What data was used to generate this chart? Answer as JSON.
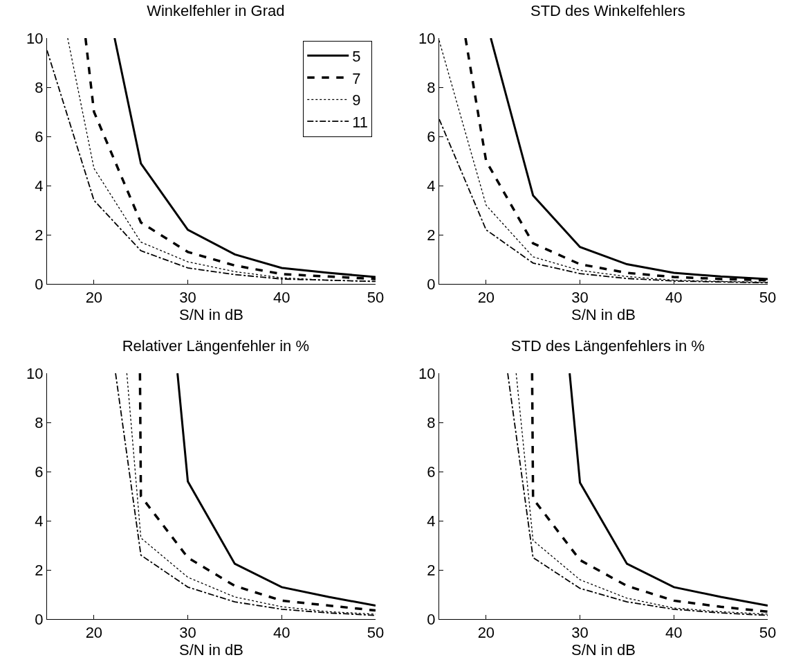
{
  "chart_data": [
    {
      "type": "line",
      "title": "Winkelfehler in Grad",
      "xlabel": "S/N in dB",
      "xlim": [
        15,
        50
      ],
      "xticks": [
        20,
        30,
        40,
        50
      ],
      "ylim": [
        0,
        10
      ],
      "yticks": [
        0,
        2,
        4,
        6,
        8,
        10
      ],
      "grid": false,
      "legend": "top right",
      "marker": "none",
      "series": [
        {
          "name": "5",
          "color": "#000000",
          "line_style": "solid",
          "x": [
            22.2,
            25,
            30,
            35,
            40,
            45,
            50
          ],
          "values": [
            10,
            4.9,
            2.2,
            1.2,
            0.65,
            0.45,
            0.28
          ]
        },
        {
          "name": "7",
          "color": "#000000",
          "line_style": "dashed",
          "x": [
            19.1,
            20,
            25,
            30,
            35,
            40,
            45,
            50
          ],
          "values": [
            10,
            7.0,
            2.5,
            1.3,
            0.75,
            0.4,
            0.3,
            0.2
          ]
        },
        {
          "name": "9",
          "color": "#000000",
          "line_style": "dotted",
          "x": [
            17.2,
            20,
            25,
            30,
            35,
            40,
            45,
            50
          ],
          "values": [
            10,
            4.7,
            1.7,
            0.9,
            0.5,
            0.25,
            0.15,
            0.1
          ]
        },
        {
          "name": "11",
          "color": "#000000",
          "line_style": "dashdot",
          "x": [
            15,
            20,
            25,
            30,
            35,
            40,
            45,
            50
          ],
          "values": [
            9.5,
            3.4,
            1.35,
            0.65,
            0.38,
            0.2,
            0.15,
            0.1
          ]
        }
      ]
    },
    {
      "type": "line",
      "title": "STD des Winkelfehlers",
      "xlabel": "S/N in dB",
      "xlim": [
        15,
        50
      ],
      "xticks": [
        20,
        30,
        40,
        50
      ],
      "ylim": [
        0,
        10
      ],
      "yticks": [
        0,
        2,
        4,
        6,
        8,
        10
      ],
      "grid": false,
      "legend": false,
      "marker": "none",
      "series": [
        {
          "color": "#000000",
          "line_style": "solid",
          "x": [
            20.5,
            25,
            30,
            35,
            40,
            45,
            50
          ],
          "values": [
            10,
            3.6,
            1.5,
            0.8,
            0.45,
            0.3,
            0.2
          ]
        },
        {
          "color": "#000000",
          "line_style": "dashed",
          "x": [
            17.8,
            20,
            25,
            30,
            35,
            40,
            45,
            50
          ],
          "values": [
            10,
            5.0,
            1.65,
            0.8,
            0.45,
            0.28,
            0.2,
            0.15
          ]
        },
        {
          "color": "#000000",
          "line_style": "dotted",
          "x": [
            15,
            20,
            25,
            30,
            35,
            40,
            45,
            50
          ],
          "values": [
            9.9,
            3.2,
            1.1,
            0.55,
            0.3,
            0.15,
            0.1,
            0.07
          ]
        },
        {
          "color": "#000000",
          "line_style": "dashdot",
          "x": [
            15,
            20,
            25,
            30,
            35,
            40,
            45,
            50
          ],
          "values": [
            6.7,
            2.2,
            0.85,
            0.42,
            0.22,
            0.12,
            0.08,
            0.05
          ]
        }
      ]
    },
    {
      "type": "line",
      "title": "Relativer Längenfehler in %",
      "xlabel": "S/N in dB",
      "xlim": [
        15,
        50
      ],
      "xticks": [
        20,
        30,
        40,
        50
      ],
      "ylim": [
        0,
        10
      ],
      "yticks": [
        0,
        2,
        4,
        6,
        8,
        10
      ],
      "grid": false,
      "legend": false,
      "marker": "none",
      "series": [
        {
          "color": "#000000",
          "line_style": "solid",
          "x": [
            28.9,
            30,
            35,
            40,
            45,
            50
          ],
          "values": [
            10,
            5.6,
            2.25,
            1.3,
            0.9,
            0.55
          ]
        },
        {
          "color": "#000000",
          "line_style": "dashed",
          "x": [
            24.9,
            25,
            30,
            35,
            40,
            45,
            50
          ],
          "values": [
            10,
            5.0,
            2.5,
            1.35,
            0.75,
            0.55,
            0.35
          ]
        },
        {
          "color": "#000000",
          "line_style": "dotted",
          "x": [
            23.5,
            25,
            30,
            35,
            40,
            45,
            50
          ],
          "values": [
            10,
            3.3,
            1.7,
            0.9,
            0.5,
            0.3,
            0.2
          ]
        },
        {
          "color": "#000000",
          "line_style": "dashdot",
          "x": [
            22.3,
            25,
            30,
            35,
            40,
            45,
            50
          ],
          "values": [
            10,
            2.6,
            1.3,
            0.7,
            0.4,
            0.25,
            0.15
          ]
        }
      ]
    },
    {
      "type": "line",
      "title": "STD des Längenfehlers in %",
      "xlabel": "S/N in dB",
      "xlim": [
        15,
        50
      ],
      "xticks": [
        20,
        30,
        40,
        50
      ],
      "ylim": [
        0,
        10
      ],
      "yticks": [
        0,
        2,
        4,
        6,
        8,
        10
      ],
      "grid": false,
      "legend": false,
      "marker": "none",
      "series": [
        {
          "color": "#000000",
          "line_style": "solid",
          "x": [
            28.9,
            30,
            35,
            40,
            45,
            50
          ],
          "values": [
            10,
            5.55,
            2.25,
            1.3,
            0.9,
            0.55
          ]
        },
        {
          "color": "#000000",
          "line_style": "dashed",
          "x": [
            24.9,
            25,
            30,
            35,
            40,
            45,
            50
          ],
          "values": [
            10,
            4.9,
            2.4,
            1.35,
            0.75,
            0.5,
            0.3
          ]
        },
        {
          "color": "#000000",
          "line_style": "dotted",
          "x": [
            23.2,
            25,
            30,
            35,
            40,
            45,
            50
          ],
          "values": [
            10,
            3.2,
            1.6,
            0.85,
            0.45,
            0.3,
            0.2
          ]
        },
        {
          "color": "#000000",
          "line_style": "dashdot",
          "x": [
            22.3,
            25,
            30,
            35,
            40,
            45,
            50
          ],
          "values": [
            10,
            2.5,
            1.25,
            0.7,
            0.4,
            0.25,
            0.15
          ]
        }
      ]
    }
  ]
}
